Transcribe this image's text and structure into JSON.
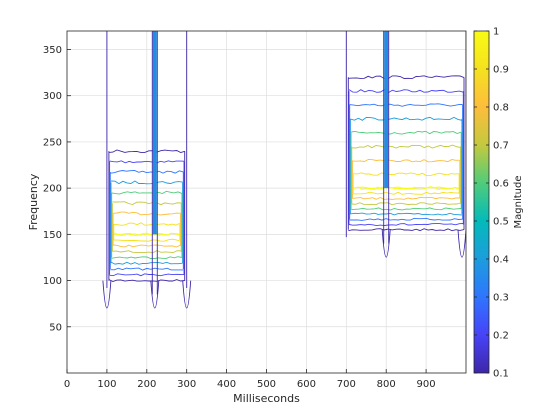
{
  "chart_data": {
    "type": "contour",
    "xlabel": "Milliseconds",
    "ylabel": "Frequency",
    "colorbar_label": "Magnitude",
    "xlim": [
      0,
      1000
    ],
    "ylim": [
      0,
      370
    ],
    "grid": true,
    "x_ticks": [
      "0",
      "100",
      "200",
      "300",
      "400",
      "500",
      "600",
      "700",
      "800",
      "900"
    ],
    "y_ticks": [
      "50",
      "100",
      "150",
      "200",
      "250",
      "300",
      "350"
    ],
    "colorbar_ticks": [
      "0.1",
      "0.2",
      "0.3",
      "0.4",
      "0.5",
      "0.6",
      "0.7",
      "0.8",
      "0.9",
      "1"
    ],
    "colorbar_range": [
      0.1,
      1
    ],
    "colormap": [
      "#3e26a8",
      "#4743f8",
      "#2f75fe",
      "#1c9ddd",
      "#03baba",
      "#50cc7a",
      "#c4c93f",
      "#fdbd3c",
      "#f5e11f",
      "#f9fb15"
    ],
    "regions": [
      {
        "x": [
          100,
          300
        ],
        "y_range": [
          100,
          240
        ],
        "peak_frequency": 150,
        "spikes_x": [
          220
        ],
        "notches_x": [
          100,
          220,
          300
        ]
      },
      {
        "x": [
          700,
          1000
        ],
        "y_range": [
          155,
          320
        ],
        "peak_frequency": 200,
        "spikes_x": [
          800
        ],
        "notches_x": [
          800,
          990
        ]
      }
    ]
  }
}
